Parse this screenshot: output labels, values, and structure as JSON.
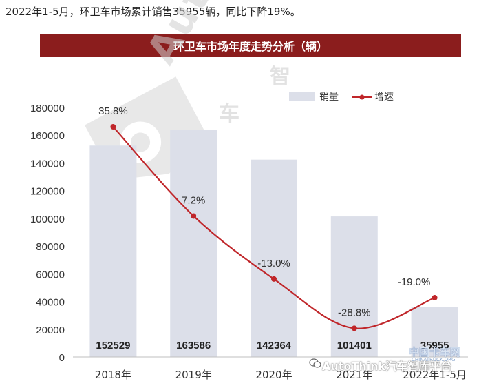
{
  "intro_text": "2022年1-5月，环卫车市场累计销售35955辆，同比下降19%。",
  "banner_title": "环卫车市场年度走势分析（辆）",
  "chart_data": {
    "type": "bar",
    "title": "环卫车市场年度走势分析（辆）",
    "categories": [
      "2018年",
      "2019年",
      "2020年",
      "2021年",
      "2022年1-5月"
    ],
    "series": [
      {
        "name": "销量",
        "type": "bar",
        "values": [
          152529,
          163586,
          142364,
          101401,
          35955
        ],
        "color": "#dcdfe9"
      },
      {
        "name": "增速",
        "type": "line",
        "values": [
          35.8,
          7.2,
          -13.0,
          -28.8,
          -19.0
        ],
        "value_labels": [
          "35.8%",
          "7.2%",
          "-13.0%",
          "-28.8%",
          "-19.0%"
        ],
        "color": "#c0262a",
        "smooth": true
      }
    ],
    "bar_labels": [
      "152529",
      "163586",
      "142364",
      "101401",
      "35955"
    ],
    "y_ticks": [
      "0",
      "20000",
      "40000",
      "60000",
      "80000",
      "100000",
      "120000",
      "140000",
      "160000",
      "180000"
    ],
    "ylim": [
      0,
      180000
    ],
    "secondary_ylim": [
      -38,
      42
    ],
    "legend_position": "top-right",
    "grid": false
  },
  "watermarks": {
    "autohome": "AutoThink",
    "cn_chars": [
      "车",
      "智"
    ],
    "footer": "AutoThink汽车智库平台",
    "cn_truck": "中国卡车网",
    "cn_truck_sub": "CHINATRUCK.ORG"
  },
  "colors": {
    "bar": "#dcdfe9",
    "line": "#c0262a",
    "banner": "#8b1d1d"
  }
}
